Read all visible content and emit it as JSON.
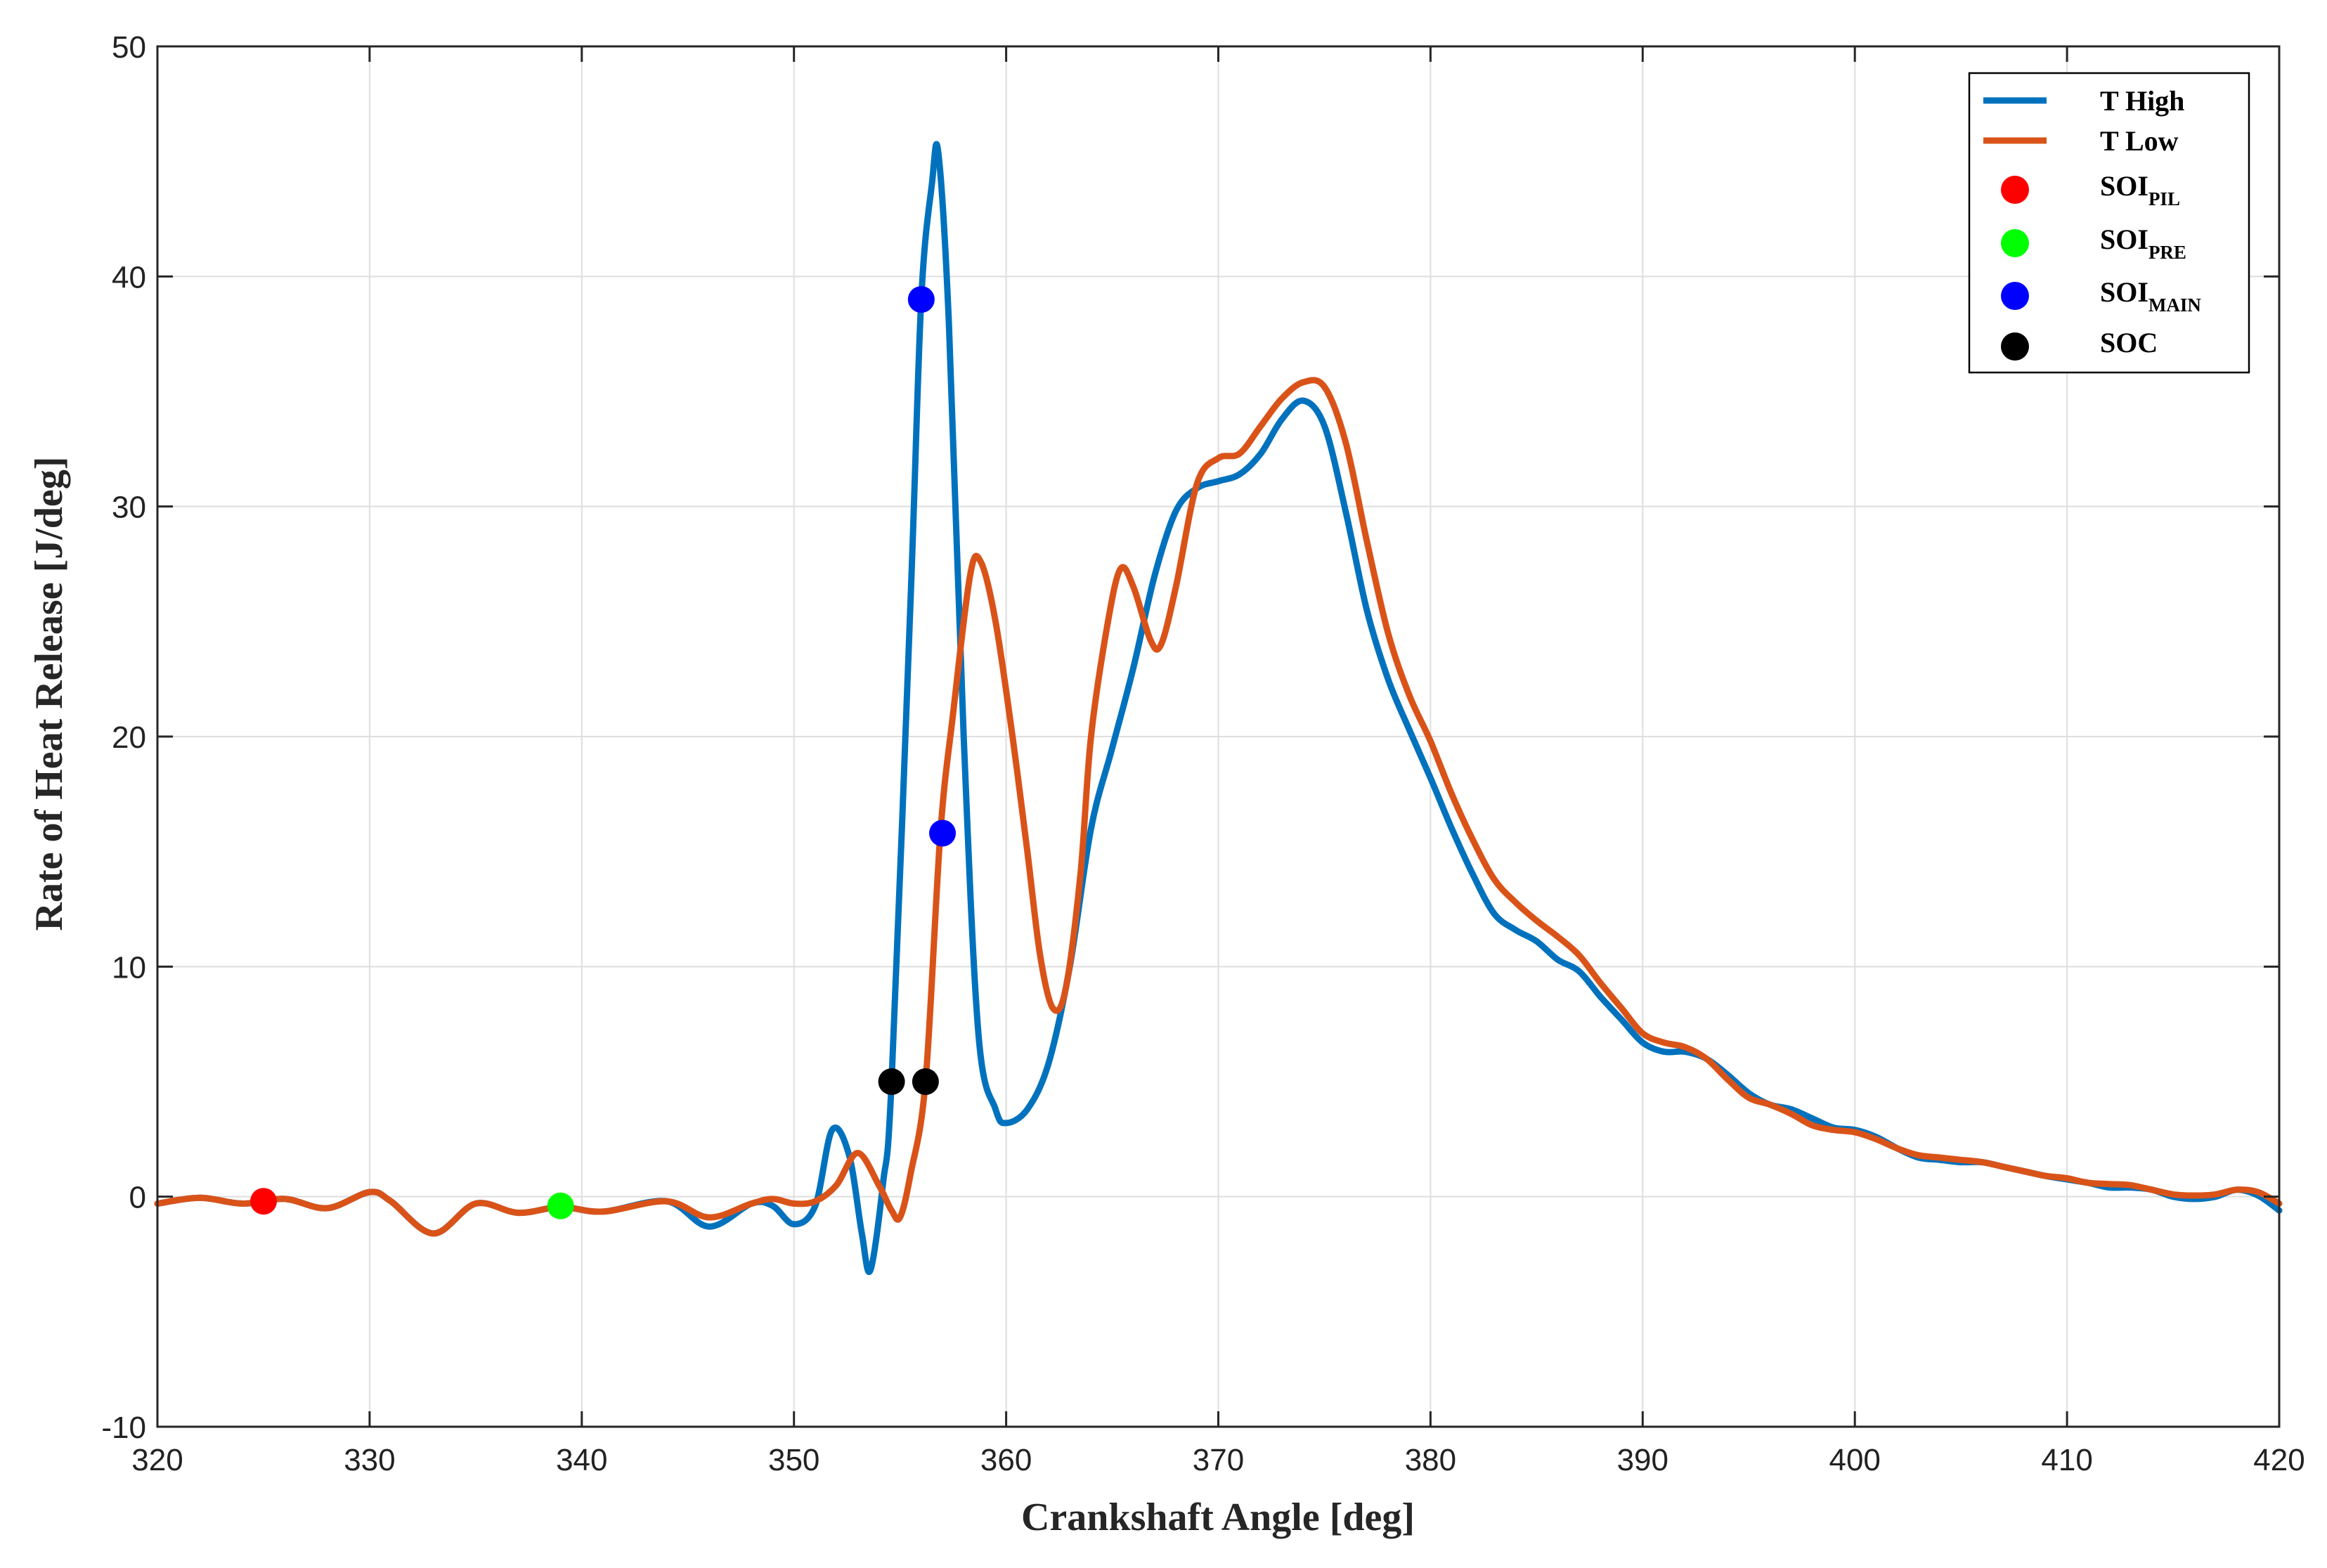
{
  "chart_data": {
    "type": "line",
    "title": "",
    "xlabel": "Crankshaft Angle [deg]",
    "ylabel": "Rate of Heat Release [J/deg]",
    "xlim": [
      320,
      420
    ],
    "ylim": [
      -10,
      50
    ],
    "x_ticks": [
      "320",
      "330",
      "340",
      "350",
      "360",
      "370",
      "380",
      "390",
      "400",
      "410",
      "420"
    ],
    "y_ticks": [
      "-10",
      "0",
      "10",
      "20",
      "30",
      "40",
      "50"
    ],
    "grid": true,
    "legend_position": "top-right",
    "series": [
      {
        "name": "T High",
        "color": "#0072BD",
        "points": [
          [
            320,
            -0.3
          ],
          [
            322,
            -0.05
          ],
          [
            324,
            -0.3
          ],
          [
            326,
            -0.1
          ],
          [
            328,
            -0.5
          ],
          [
            330,
            0.2
          ],
          [
            331,
            -0.2
          ],
          [
            333,
            -1.6
          ],
          [
            335,
            -0.3
          ],
          [
            337,
            -0.7
          ],
          [
            339,
            -0.45
          ],
          [
            341,
            -0.65
          ],
          [
            344,
            -0.2
          ],
          [
            346,
            -1.3
          ],
          [
            348,
            -0.3
          ],
          [
            349,
            -0.4
          ],
          [
            350,
            -1.2
          ],
          [
            351,
            -0.4
          ],
          [
            351.8,
            2.9
          ],
          [
            352.6,
            1.8
          ],
          [
            353.2,
            -1.6
          ],
          [
            353.6,
            -3.2
          ],
          [
            354.2,
            0.6
          ],
          [
            354.6,
            5.0
          ],
          [
            355.5,
            26
          ],
          [
            356,
            39
          ],
          [
            356.5,
            44
          ],
          [
            356.8,
            45.4
          ],
          [
            357.3,
            38
          ],
          [
            358,
            20
          ],
          [
            358.7,
            7
          ],
          [
            359.5,
            3.8
          ],
          [
            360,
            3.2
          ],
          [
            361,
            3.8
          ],
          [
            362,
            5.8
          ],
          [
            363,
            10
          ],
          [
            364,
            16
          ],
          [
            365,
            19.5
          ],
          [
            366,
            23
          ],
          [
            367,
            27
          ],
          [
            368,
            29.8
          ],
          [
            369,
            30.8
          ],
          [
            370,
            31.1
          ],
          [
            371,
            31.4
          ],
          [
            372,
            32.3
          ],
          [
            373,
            33.8
          ],
          [
            374,
            34.6
          ],
          [
            375,
            33.5
          ],
          [
            376,
            29.8
          ],
          [
            377,
            25.5
          ],
          [
            378,
            22.5
          ],
          [
            379,
            20.3
          ],
          [
            380,
            18.2
          ],
          [
            381,
            16
          ],
          [
            382,
            14
          ],
          [
            383,
            12.3
          ],
          [
            384,
            11.6
          ],
          [
            385,
            11.1
          ],
          [
            386,
            10.3
          ],
          [
            387,
            9.8
          ],
          [
            388,
            8.7
          ],
          [
            389,
            7.7
          ],
          [
            390,
            6.7
          ],
          [
            391,
            6.3
          ],
          [
            392,
            6.3
          ],
          [
            393,
            6.0
          ],
          [
            394,
            5.3
          ],
          [
            395,
            4.5
          ],
          [
            396,
            4.0
          ],
          [
            397,
            3.8
          ],
          [
            398,
            3.4
          ],
          [
            399,
            3.0
          ],
          [
            400,
            2.9
          ],
          [
            401,
            2.6
          ],
          [
            402,
            2.1
          ],
          [
            403,
            1.7
          ],
          [
            404,
            1.6
          ],
          [
            405,
            1.5
          ],
          [
            406,
            1.5
          ],
          [
            407,
            1.3
          ],
          [
            408,
            1.1
          ],
          [
            409,
            0.9
          ],
          [
            410,
            0.75
          ],
          [
            411,
            0.6
          ],
          [
            412,
            0.4
          ],
          [
            413,
            0.4
          ],
          [
            414,
            0.3
          ],
          [
            415,
            0.0
          ],
          [
            416,
            -0.1
          ],
          [
            417,
            0.0
          ],
          [
            418,
            0.3
          ],
          [
            419,
            0.05
          ],
          [
            420,
            -0.6
          ]
        ]
      },
      {
        "name": "T Low",
        "color": "#D95319",
        "points": [
          [
            320,
            -0.3
          ],
          [
            322,
            -0.05
          ],
          [
            324,
            -0.3
          ],
          [
            326,
            -0.1
          ],
          [
            328,
            -0.5
          ],
          [
            330,
            0.2
          ],
          [
            331,
            -0.2
          ],
          [
            333,
            -1.6
          ],
          [
            335,
            -0.3
          ],
          [
            337,
            -0.7
          ],
          [
            339,
            -0.45
          ],
          [
            341,
            -0.65
          ],
          [
            344,
            -0.2
          ],
          [
            346,
            -0.9
          ],
          [
            348,
            -0.3
          ],
          [
            349,
            -0.1
          ],
          [
            350,
            -0.3
          ],
          [
            351,
            -0.2
          ],
          [
            352,
            0.5
          ],
          [
            353,
            1.9
          ],
          [
            354,
            0.5
          ],
          [
            354.6,
            -0.6
          ],
          [
            355,
            -0.9
          ],
          [
            355.5,
            1.0
          ],
          [
            356.2,
            5.0
          ],
          [
            356.9,
            15.8
          ],
          [
            357.5,
            21
          ],
          [
            358.3,
            27
          ],
          [
            358.8,
            27.6
          ],
          [
            359.5,
            25
          ],
          [
            360.3,
            20
          ],
          [
            361,
            15
          ],
          [
            361.6,
            10.5
          ],
          [
            362.2,
            8.2
          ],
          [
            362.8,
            9
          ],
          [
            363.5,
            14
          ],
          [
            364,
            20
          ],
          [
            364.8,
            25
          ],
          [
            365.4,
            27.3
          ],
          [
            366,
            26.5
          ],
          [
            366.8,
            24.2
          ],
          [
            367.3,
            24
          ],
          [
            368,
            26.5
          ],
          [
            369,
            31
          ],
          [
            370,
            32.1
          ],
          [
            371,
            32.3
          ],
          [
            372,
            33.5
          ],
          [
            373,
            34.7
          ],
          [
            374,
            35.4
          ],
          [
            375,
            35.2
          ],
          [
            376,
            32.8
          ],
          [
            377,
            28.5
          ],
          [
            378,
            24.5
          ],
          [
            379,
            21.8
          ],
          [
            380,
            19.8
          ],
          [
            381,
            17.5
          ],
          [
            382,
            15.5
          ],
          [
            383,
            13.8
          ],
          [
            384,
            12.8
          ],
          [
            385,
            12.0
          ],
          [
            386,
            11.3
          ],
          [
            387,
            10.5
          ],
          [
            388,
            9.3
          ],
          [
            389,
            8.2
          ],
          [
            390,
            7.1
          ],
          [
            391,
            6.7
          ],
          [
            392,
            6.5
          ],
          [
            393,
            6.0
          ],
          [
            394,
            5.1
          ],
          [
            395,
            4.3
          ],
          [
            396,
            4.0
          ],
          [
            397,
            3.6
          ],
          [
            398,
            3.1
          ],
          [
            399,
            2.9
          ],
          [
            400,
            2.8
          ],
          [
            401,
            2.5
          ],
          [
            402,
            2.1
          ],
          [
            403,
            1.8
          ],
          [
            404,
            1.7
          ],
          [
            405,
            1.6
          ],
          [
            406,
            1.5
          ],
          [
            407,
            1.3
          ],
          [
            408,
            1.1
          ],
          [
            409,
            0.9
          ],
          [
            410,
            0.8
          ],
          [
            411,
            0.6
          ],
          [
            412,
            0.55
          ],
          [
            413,
            0.5
          ],
          [
            414,
            0.3
          ],
          [
            415,
            0.1
          ],
          [
            416,
            0.05
          ],
          [
            417,
            0.1
          ],
          [
            418,
            0.3
          ],
          [
            419,
            0.2
          ],
          [
            420,
            -0.3
          ]
        ]
      }
    ],
    "markers": [
      {
        "label": "SOI",
        "subscript": "PIL",
        "color": "#FF0000",
        "points": [
          [
            325,
            -0.2
          ]
        ]
      },
      {
        "label": "SOI",
        "subscript": "PRE",
        "color": "#00FF00",
        "points": [
          [
            339,
            -0.4
          ]
        ]
      },
      {
        "label": "SOI",
        "subscript": "MAIN",
        "color": "#0000FF",
        "points": [
          [
            356,
            39
          ],
          [
            357,
            15.8
          ]
        ]
      },
      {
        "label": "SOC",
        "subscript": "",
        "color": "#000000",
        "points": [
          [
            354.6,
            5.0
          ],
          [
            356.2,
            5.0
          ]
        ]
      }
    ]
  }
}
